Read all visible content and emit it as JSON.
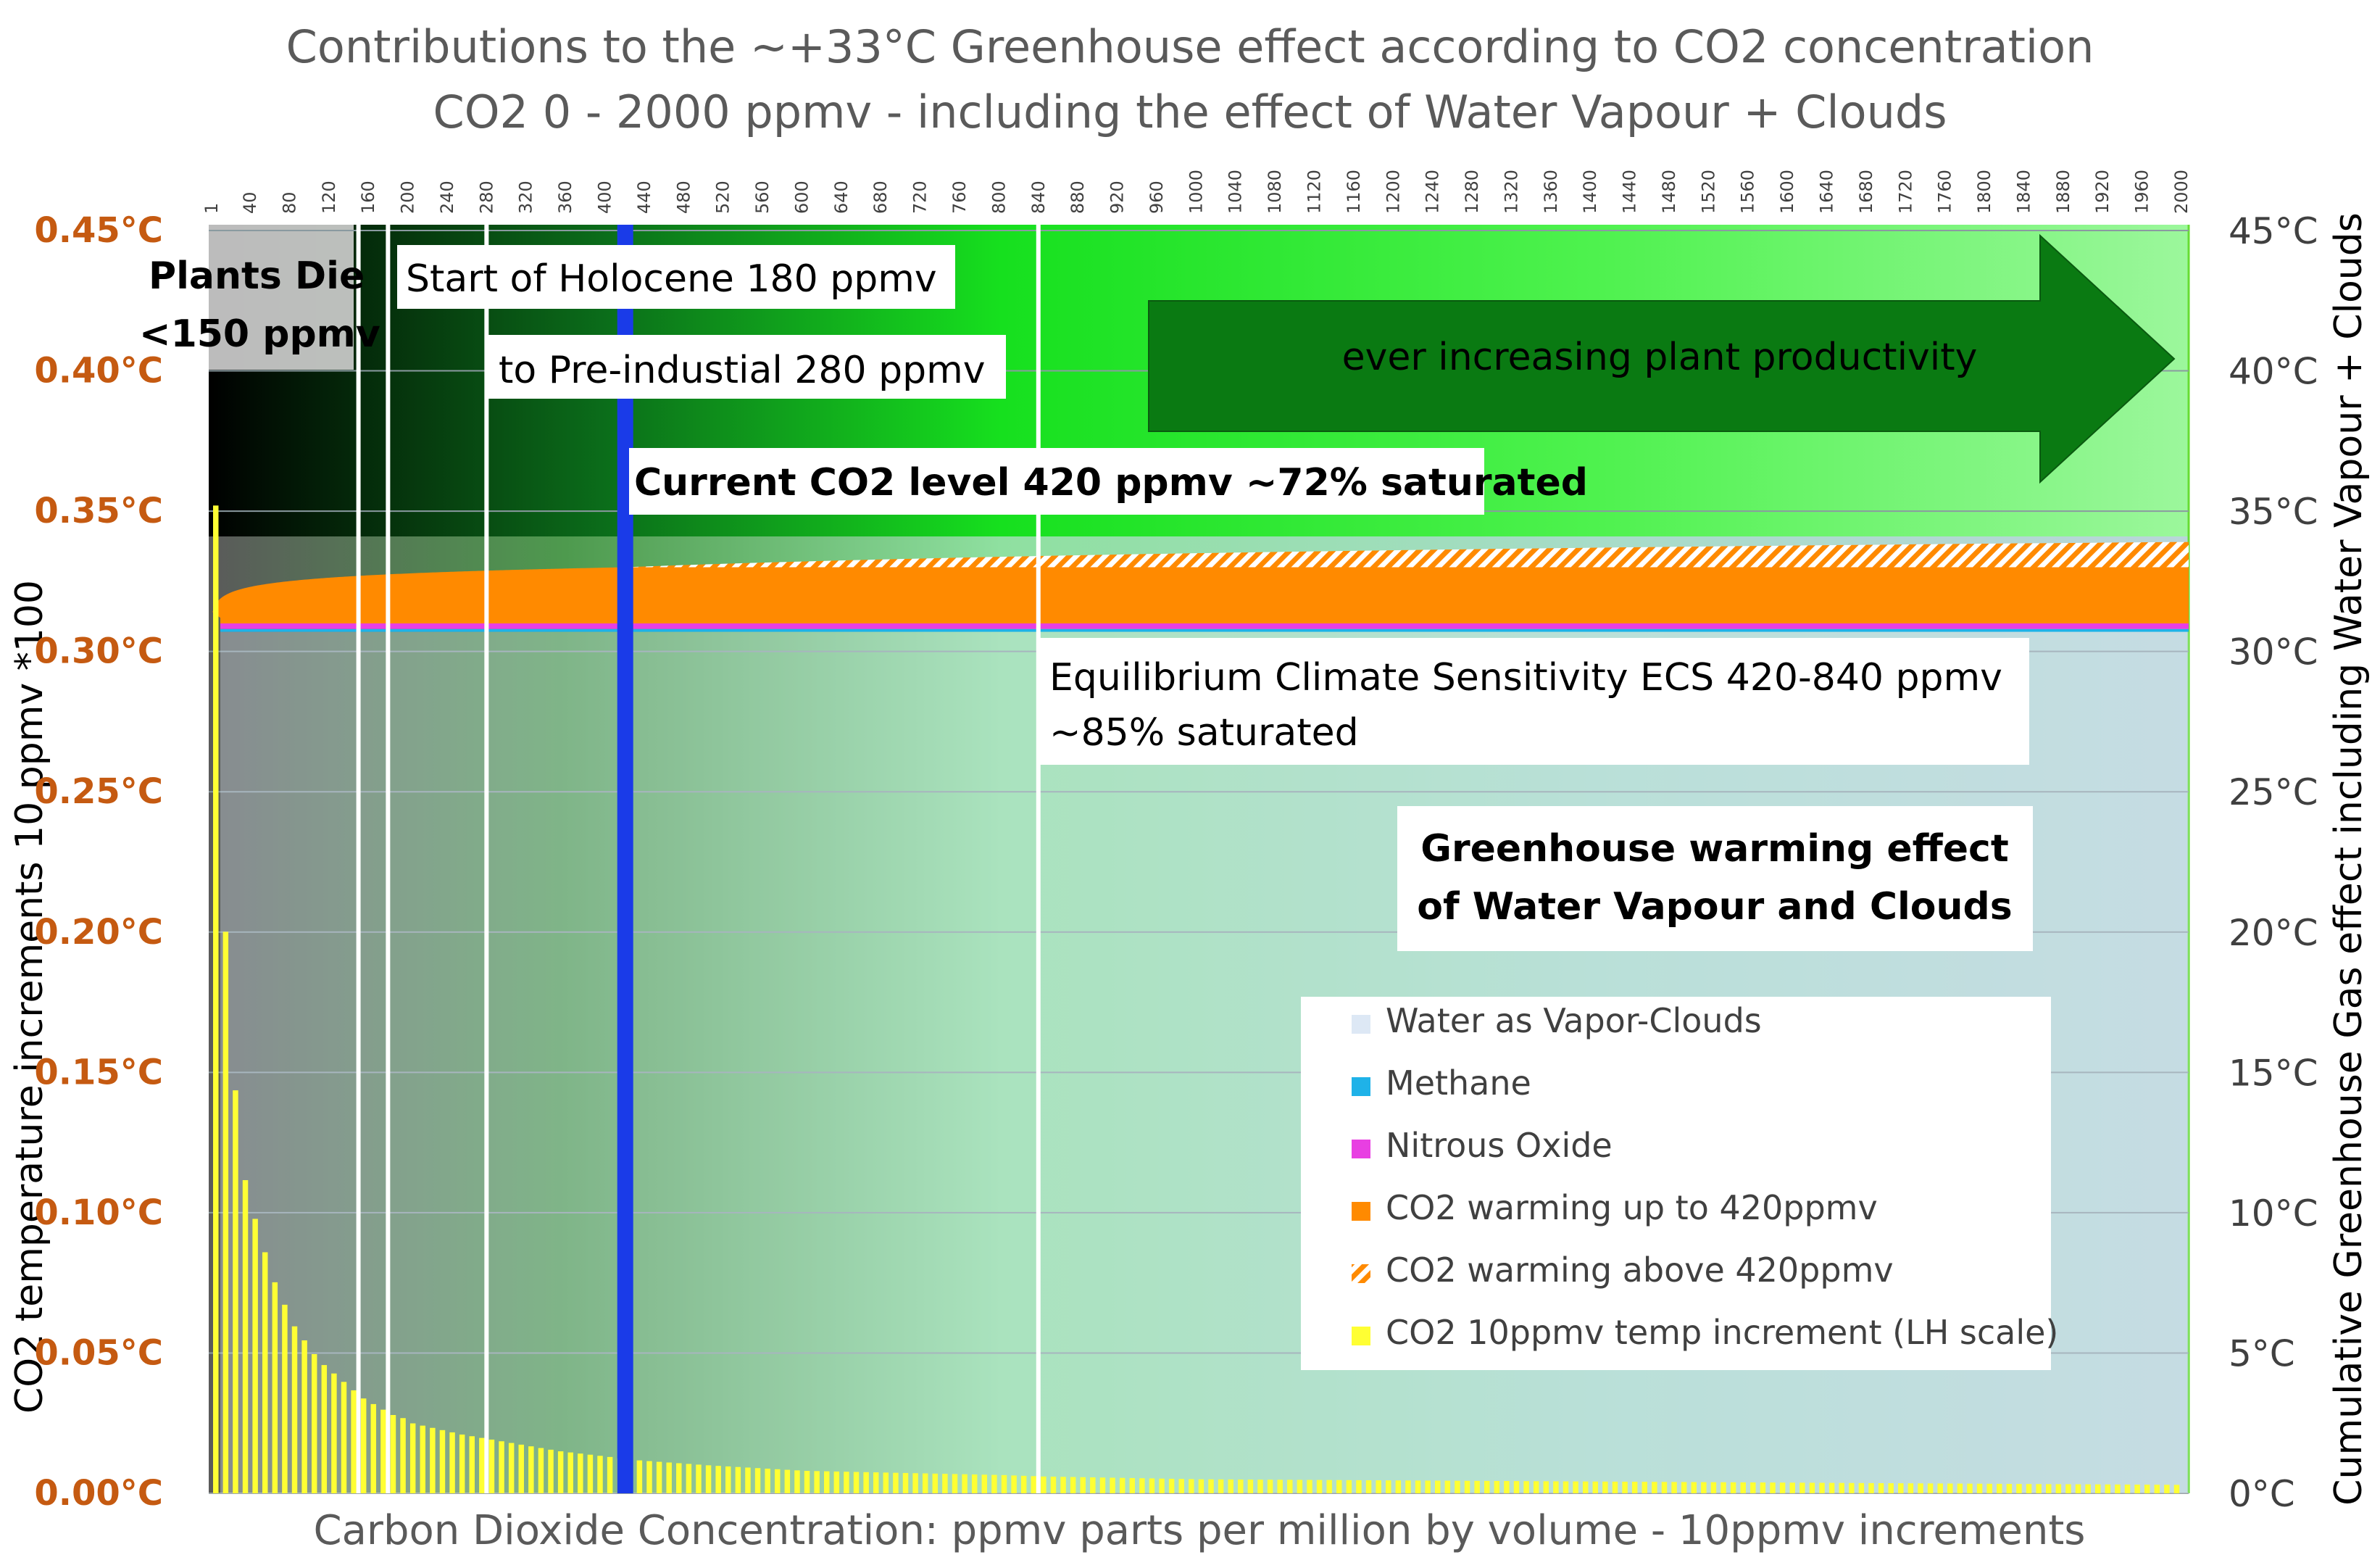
{
  "chart_data": {
    "type": "bar",
    "title": "Contributions to the ~+33°C Greenhouse effect according to CO2 concentration",
    "subtitle": "CO2 0 - 2000 ppmv -  including the effect of Water Vapour + Clouds",
    "xlabel": "Carbon Dioxide Concentration:  ppmv  parts per million by volume - 10ppmv increments",
    "ylabel_left": "CO2 temperature increments  10 ppmv *100",
    "ylabel_right": "Cumulative Greenhouse Gas  effect including Water Vapour + Clouds",
    "xlim": [
      1,
      2000
    ],
    "ylim_left": [
      0,
      0.45
    ],
    "ylim_right": [
      0,
      45
    ],
    "left_ticks": [
      "0.00°C",
      "0.05°C",
      "0.10°C",
      "0.15°C",
      "0.20°C",
      "0.25°C",
      "0.30°C",
      "0.35°C",
      "0.40°C",
      "0.45°C"
    ],
    "right_ticks": [
      "0°C",
      "5°C",
      "10°C",
      "15°C",
      "20°C",
      "25°C",
      "30°C",
      "35°C",
      "40°C",
      "45°C"
    ],
    "x_ticks": [
      "1",
      "40",
      "80",
      "120",
      "160",
      "200",
      "240",
      "280",
      "320",
      "360",
      "400",
      "440",
      "480",
      "520",
      "560",
      "600",
      "640",
      "680",
      "720",
      "760",
      "800",
      "840",
      "880",
      "920",
      "960",
      "1000",
      "1040",
      "1080",
      "1120",
      "1160",
      "1200",
      "1240",
      "1280",
      "1320",
      "1360",
      "1400",
      "1440",
      "1480",
      "1520",
      "1560",
      "1600",
      "1640",
      "1680",
      "1720",
      "1760",
      "1800",
      "1840",
      "1880",
      "1920",
      "1960",
      "2000"
    ],
    "series": [
      {
        "name": "Water as Vapor-Clouds",
        "color": "#dde8f5",
        "value_celsius": 30.7
      },
      {
        "name": "Methane",
        "color": "#1fb2e8",
        "value_celsius": 0.1
      },
      {
        "name": "Nitrous Oxide",
        "color": "#e83fe2",
        "value_celsius": 0.2
      },
      {
        "name": "CO2 warming up to 420ppmv",
        "color": "#ff8a00",
        "cumulative_top_at_1ppmv": 31.2,
        "cumulative_top_at_420ppmv": 33.0
      },
      {
        "name": "CO2 warming above 420ppmv",
        "color": "#ff8a00",
        "pattern": "hatched",
        "cumulative_top_at_2000ppmv": 33.9
      },
      {
        "name": "CO2 10ppmv temp increment (LH scale)",
        "color": "#ffff33",
        "x": [
          1,
          10,
          20,
          30,
          40,
          50,
          60,
          70,
          80,
          90,
          100,
          110,
          120,
          130,
          140,
          150,
          160,
          170,
          180,
          190,
          200,
          250,
          300,
          350,
          400,
          420,
          500,
          600,
          800,
          840,
          1000,
          1500,
          2000
        ],
        "values": [
          0.352,
          0.206,
          0.147,
          0.113,
          0.099,
          0.087,
          0.076,
          0.068,
          0.06,
          0.055,
          0.05,
          0.046,
          0.043,
          0.04,
          0.037,
          0.034,
          0.032,
          0.03,
          0.028,
          0.027,
          0.025,
          0.021,
          0.018,
          0.015,
          0.013,
          0.012,
          0.01,
          0.008,
          0.0065,
          0.006,
          0.005,
          0.004,
          0.003
        ]
      }
    ],
    "annotations": [
      {
        "text": "Plants Die",
        "x_ppmv": 1
      },
      {
        "text": "<150 ppmv",
        "x_ppmv": 1
      },
      {
        "text": "Start of Holocene 180 ppmv",
        "x_ppmv": 180
      },
      {
        "text": "to Pre-industial 280 ppmv",
        "x_ppmv": 280
      },
      {
        "text": "Current CO2 level 420 ppmv ~72% saturated",
        "x_ppmv": 420
      },
      {
        "text": "Equilibrium Climate Sensitivity  ECS 420-840 ppmv",
        "x_ppmv": 840
      },
      {
        "text": "~85% saturated",
        "x_ppmv": 840
      },
      {
        "text": "ever increasing plant productivity"
      },
      {
        "text": "Greenhouse warming effect"
      },
      {
        "text": "of Water Vapour and Clouds"
      }
    ],
    "reference_lines_ppmv": [
      150,
      180,
      280,
      420,
      840
    ],
    "current_level_color": "#1a3be8",
    "legend_position": "bottom-right"
  }
}
